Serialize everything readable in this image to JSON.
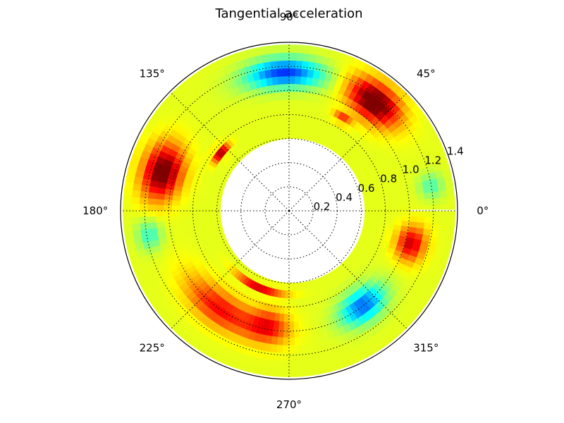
{
  "chart_data": {
    "type": "heatmap",
    "projection": "polar",
    "title": "Tangential acceleration",
    "colormap": "jet",
    "rlim": [
      0,
      1.4
    ],
    "data_r_range": [
      0.62,
      1.38
    ],
    "center_offset_factor": 0.25,
    "angle_ticks": [
      {
        "deg": 0,
        "label": "0°"
      },
      {
        "deg": 45,
        "label": "45°"
      },
      {
        "deg": 90,
        "label": "90°"
      },
      {
        "deg": 135,
        "label": "135°"
      },
      {
        "deg": 180,
        "label": "180°"
      },
      {
        "deg": 225,
        "label": "225°"
      },
      {
        "deg": 270,
        "label": "270°"
      },
      {
        "deg": 315,
        "label": "315°"
      }
    ],
    "radial_ticks": [
      {
        "r": 0.2,
        "label": "0.2"
      },
      {
        "r": 0.4,
        "label": "0.4"
      },
      {
        "r": 0.6,
        "label": "0.6"
      },
      {
        "r": 0.8,
        "label": "0.8"
      },
      {
        "r": 1.0,
        "label": "1.0"
      },
      {
        "r": 1.2,
        "label": "1.2"
      },
      {
        "r": 1.4,
        "label": "1.4"
      }
    ],
    "grid": true,
    "features": [
      {
        "theta_deg": 92,
        "r": 1.15,
        "value": -1.0,
        "dtheta_deg": 16,
        "dr": 0.12
      },
      {
        "theta_deg": 52,
        "r": 1.15,
        "value": 1.0,
        "dtheta_deg": 12,
        "dr": 0.15
      },
      {
        "theta_deg": 163,
        "r": 1.1,
        "value": 0.95,
        "dtheta_deg": 12,
        "dr": 0.16
      },
      {
        "theta_deg": 235,
        "r": 1.0,
        "value": 0.6,
        "dtheta_deg": 20,
        "dr": 0.14
      },
      {
        "theta_deg": 260,
        "r": 0.98,
        "value": 0.55,
        "dtheta_deg": 10,
        "dr": 0.14
      },
      {
        "theta_deg": 308,
        "r": 1.0,
        "value": -0.9,
        "dtheta_deg": 12,
        "dr": 0.13
      },
      {
        "theta_deg": 345,
        "r": 1.05,
        "value": 0.7,
        "dtheta_deg": 8,
        "dr": 0.12
      },
      {
        "theta_deg": 10,
        "r": 1.2,
        "value": -0.45,
        "dtheta_deg": 5,
        "dr": 0.1
      },
      {
        "theta_deg": 190,
        "r": 1.18,
        "value": -0.5,
        "dtheta_deg": 6,
        "dr": 0.1
      },
      {
        "theta_deg": 60,
        "r": 0.88,
        "value": 0.75,
        "dtheta_deg": 5,
        "dr": 0.03
      },
      {
        "theta_deg": 140,
        "r": 0.75,
        "value": 0.75,
        "dtheta_deg": 7,
        "dr": 0.04
      },
      {
        "theta_deg": 250,
        "r": 0.68,
        "value": 0.7,
        "dtheta_deg": 18,
        "dr": 0.03
      }
    ]
  }
}
